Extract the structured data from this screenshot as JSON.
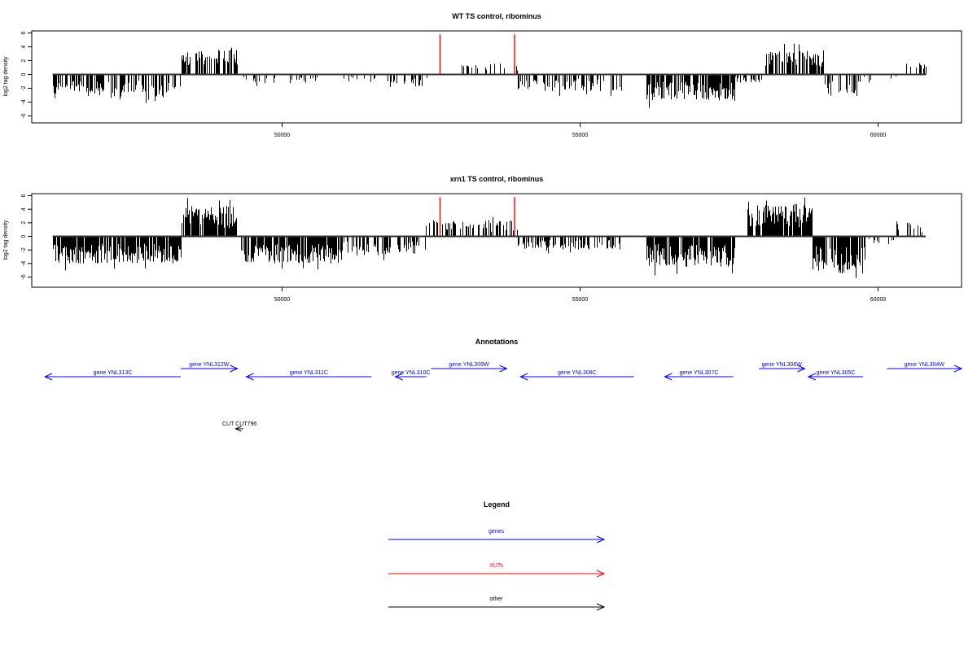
{
  "chart_data": [
    {
      "type": "bar",
      "title": "WT TS control, ribominus",
      "xlabel": "",
      "ylabel": "log2 tag density",
      "xlim": [
        45800,
        61400
      ],
      "ylim": [
        -7,
        6.3
      ],
      "x_ticks": [
        50000,
        55000,
        60000
      ],
      "y_ticks": [
        -6,
        -4,
        -2,
        0,
        2,
        4,
        6
      ],
      "grid": false,
      "baseline": {
        "from": 46150,
        "to": 60800
      },
      "highlights": [
        {
          "x": 52650,
          "y": 5.8,
          "color": "#ff0000"
        },
        {
          "x": 53900,
          "y": 5.8,
          "color": "#ff0000"
        }
      ],
      "regions": [
        {
          "from": 46150,
          "to": 48300,
          "sign": -1,
          "amp": 3.2,
          "density": 0.55,
          "seed": 11
        },
        {
          "from": 48300,
          "to": 49250,
          "sign": 1,
          "amp": 3.6,
          "density": 0.6,
          "seed": 12
        },
        {
          "from": 49300,
          "to": 50400,
          "sign": -1,
          "amp": 1.3,
          "density": 0.2,
          "seed": 13
        },
        {
          "from": 50400,
          "to": 51800,
          "sign": -1,
          "amp": 1.0,
          "density": 0.15,
          "seed": 14
        },
        {
          "from": 51800,
          "to": 52500,
          "sign": -1,
          "amp": 1.8,
          "density": 0.25,
          "seed": 15
        },
        {
          "from": 53000,
          "to": 53950,
          "sign": 1,
          "amp": 1.6,
          "density": 0.25,
          "seed": 16
        },
        {
          "from": 53950,
          "to": 55700,
          "sign": -1,
          "amp": 2.4,
          "density": 0.4,
          "seed": 17
        },
        {
          "from": 56100,
          "to": 57600,
          "sign": -1,
          "amp": 3.8,
          "density": 0.75,
          "seed": 18
        },
        {
          "from": 57600,
          "to": 58050,
          "sign": -1,
          "amp": 1.2,
          "density": 0.3,
          "seed": 19
        },
        {
          "from": 58100,
          "to": 59100,
          "sign": 1,
          "amp": 3.6,
          "density": 0.75,
          "seed": 20
        },
        {
          "from": 59100,
          "to": 59700,
          "sign": -1,
          "amp": 3.2,
          "density": 0.35,
          "seed": 21
        },
        {
          "from": 59700,
          "to": 60300,
          "sign": -1,
          "amp": 1.0,
          "density": 0.12,
          "seed": 22
        },
        {
          "from": 60300,
          "to": 60800,
          "sign": 1,
          "amp": 1.8,
          "density": 0.2,
          "seed": 23
        }
      ]
    },
    {
      "type": "bar",
      "title": "xrn1 TS control, ribominus",
      "xlabel": "",
      "ylabel": "log2 tag density",
      "xlim": [
        45800,
        61400
      ],
      "ylim": [
        -7.5,
        6.3
      ],
      "x_ticks": [
        50000,
        55000,
        60000
      ],
      "y_ticks": [
        -6,
        -4,
        -2,
        0,
        2,
        4,
        6
      ],
      "grid": false,
      "baseline": {
        "from": 46150,
        "to": 60800
      },
      "highlights": [
        {
          "x": 52650,
          "y": 5.8,
          "color": "#ff0000"
        },
        {
          "x": 53900,
          "y": 5.8,
          "color": "#ff0000"
        }
      ],
      "regions": [
        {
          "from": 46150,
          "to": 48300,
          "sign": -1,
          "amp": 4.0,
          "density": 0.85,
          "seed": 31
        },
        {
          "from": 48300,
          "to": 49250,
          "sign": 1,
          "amp": 4.5,
          "density": 0.85,
          "seed": 32
        },
        {
          "from": 49300,
          "to": 51000,
          "sign": -1,
          "amp": 4.0,
          "density": 0.8,
          "seed": 33
        },
        {
          "from": 51000,
          "to": 52400,
          "sign": -1,
          "amp": 2.8,
          "density": 0.5,
          "seed": 34
        },
        {
          "from": 52400,
          "to": 53950,
          "sign": 1,
          "amp": 2.4,
          "density": 0.45,
          "seed": 35
        },
        {
          "from": 53950,
          "to": 55700,
          "sign": -1,
          "amp": 2.0,
          "density": 0.45,
          "seed": 36
        },
        {
          "from": 56100,
          "to": 57600,
          "sign": -1,
          "amp": 4.5,
          "density": 0.9,
          "seed": 37
        },
        {
          "from": 57800,
          "to": 58900,
          "sign": 1,
          "amp": 4.8,
          "density": 0.85,
          "seed": 38
        },
        {
          "from": 58900,
          "to": 59800,
          "sign": -1,
          "amp": 5.5,
          "density": 0.85,
          "seed": 39
        },
        {
          "from": 59800,
          "to": 60300,
          "sign": -1,
          "amp": 1.2,
          "density": 0.15,
          "seed": 40
        },
        {
          "from": 60300,
          "to": 60800,
          "sign": 1,
          "amp": 2.2,
          "density": 0.3,
          "seed": 41
        }
      ]
    }
  ],
  "annotations": {
    "title": "Annotations",
    "genes": [
      {
        "label": "gene YNL313C",
        "from": 46020,
        "to": 48300,
        "strand": "-",
        "row": "lower"
      },
      {
        "label": "gene YNL312W",
        "from": 48300,
        "to": 49250,
        "strand": "+",
        "row": "upper"
      },
      {
        "label": "gene YNL311C",
        "from": 49400,
        "to": 51500,
        "strand": "-",
        "row": "lower"
      },
      {
        "label": "gene YNL310C",
        "from": 51900,
        "to": 52420,
        "strand": "-",
        "row": "lower"
      },
      {
        "label": "gene YNL309W",
        "from": 52500,
        "to": 53770,
        "strand": "+",
        "row": "upper"
      },
      {
        "label": "gene YNL308C",
        "from": 54000,
        "to": 55900,
        "strand": "-",
        "row": "lower"
      },
      {
        "label": "gene YNL307C",
        "from": 56420,
        "to": 57570,
        "strand": "-",
        "row": "lower"
      },
      {
        "label": "gene YNL306W",
        "from": 58000,
        "to": 58770,
        "strand": "+",
        "row": "upper"
      },
      {
        "label": "gene YNL305C",
        "from": 58830,
        "to": 59750,
        "strand": "-",
        "row": "lower"
      },
      {
        "label": "gene YNL304W",
        "from": 60150,
        "to": 61400,
        "strand": "+",
        "row": "upper"
      }
    ],
    "other": [
      {
        "label": "CUT CUT796",
        "from": 49220,
        "to": 49350,
        "strand": "-"
      }
    ]
  },
  "legend": {
    "title": "Legend",
    "items": [
      {
        "label": "genes",
        "color": "#0000ff"
      },
      {
        "label": "XUTs",
        "color": "#ff0000"
      },
      {
        "label": "other",
        "color": "#000000"
      }
    ]
  }
}
